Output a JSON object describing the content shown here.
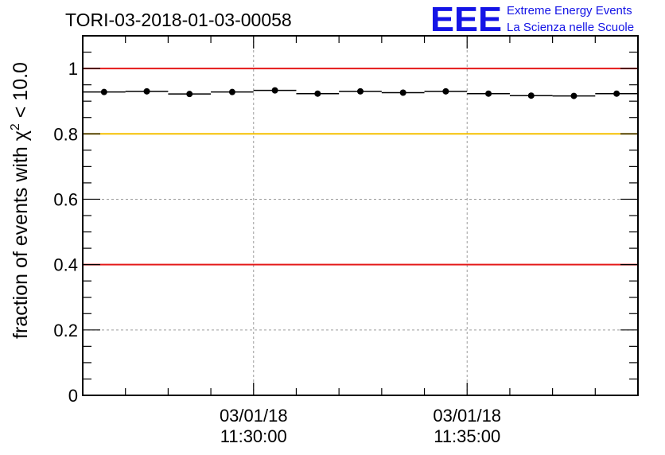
{
  "logo": {
    "letters": "EEE",
    "line1": "Extreme Energy Events",
    "line2": "La Scienza nelle Scuole",
    "color": "#1414e6"
  },
  "colors": {
    "reference_red": "#e41a1a",
    "reference_yellow": "#f5c000",
    "data": "#000000",
    "grid": "#9a9a9a"
  },
  "chart_data": {
    "type": "scatter",
    "title": "TORI-03-2018-01-03-00058",
    "ylabel": {
      "prefix": "fraction of events with ",
      "chi": "χ",
      "sup": "2",
      "suffix": " < 10.0"
    },
    "xlabel": "",
    "xlim_minutes": [
      0,
      13
    ],
    "ylim": [
      0,
      1.1
    ],
    "grid": true,
    "x_ticks": [
      {
        "minute": 4,
        "date": "03/01/18",
        "time": "11:30:00"
      },
      {
        "minute": 9,
        "date": "03/01/18",
        "time": "11:35:00"
      }
    ],
    "y_ticks": [
      {
        "value": 0,
        "label": "0"
      },
      {
        "value": 0.2,
        "label": "0.2"
      },
      {
        "value": 0.4,
        "label": "0.4"
      },
      {
        "value": 0.6,
        "label": "0.6"
      },
      {
        "value": 0.8,
        "label": "0.8"
      },
      {
        "value": 1,
        "label": "1"
      }
    ],
    "reference_lines": [
      {
        "value": 1.0,
        "color": "red"
      },
      {
        "value": 0.8,
        "color": "yellow"
      },
      {
        "value": 0.4,
        "color": "red"
      }
    ],
    "bin_width_minutes": 1,
    "points": [
      {
        "x": 0.5,
        "y": 0.928
      },
      {
        "x": 1.5,
        "y": 0.93
      },
      {
        "x": 2.5,
        "y": 0.922
      },
      {
        "x": 3.5,
        "y": 0.928
      },
      {
        "x": 4.5,
        "y": 0.933
      },
      {
        "x": 5.5,
        "y": 0.923
      },
      {
        "x": 6.5,
        "y": 0.93
      },
      {
        "x": 7.5,
        "y": 0.926
      },
      {
        "x": 8.5,
        "y": 0.93
      },
      {
        "x": 9.5,
        "y": 0.923
      },
      {
        "x": 10.5,
        "y": 0.917
      },
      {
        "x": 11.5,
        "y": 0.916
      },
      {
        "x": 12.5,
        "y": 0.923
      }
    ]
  }
}
